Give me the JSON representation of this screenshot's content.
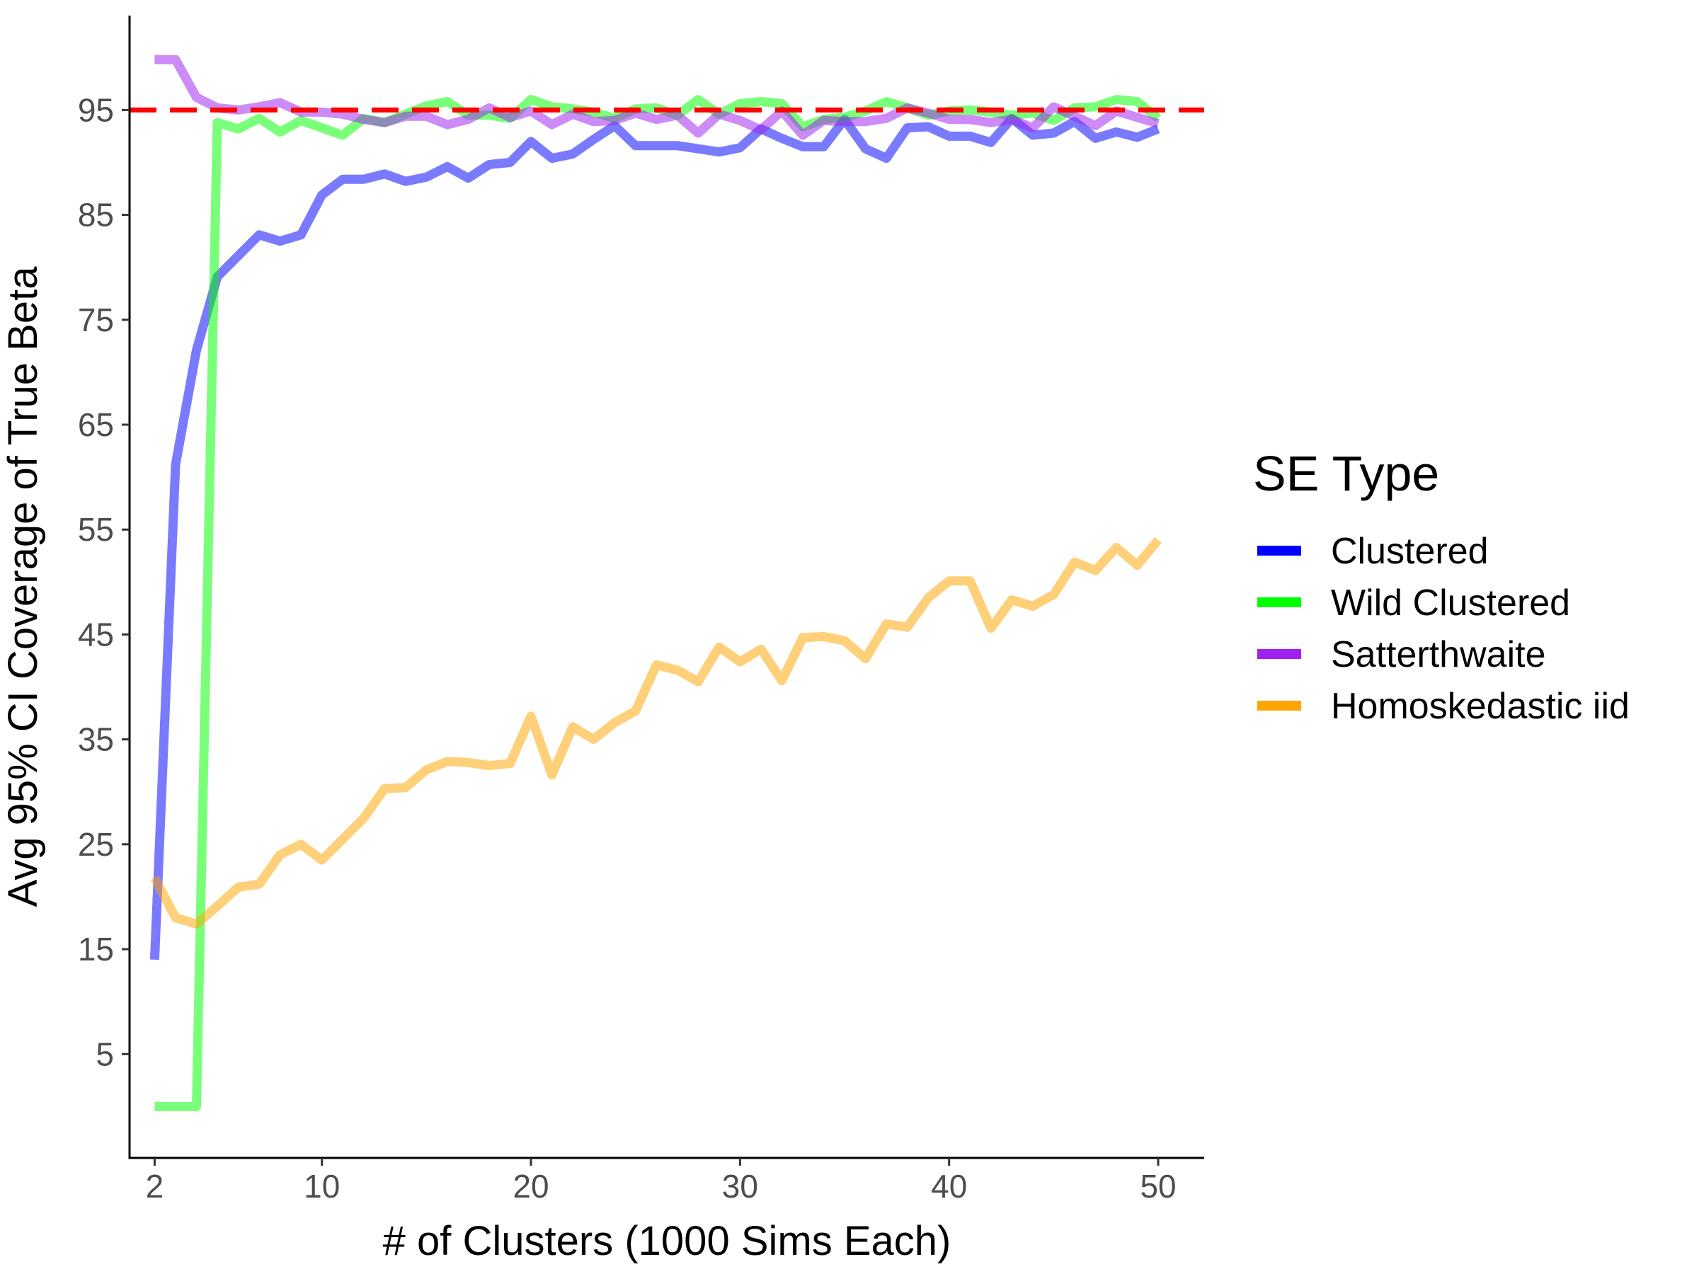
{
  "chart_data": {
    "type": "line",
    "xlabel": "# of Clusters (1000 Sims Each)",
    "ylabel": "Avg 95% CI Coverage of True Beta",
    "xlim": [
      0.8,
      52.2
    ],
    "ylim": [
      -4.9,
      104
    ],
    "x_ticks": [
      2,
      10,
      20,
      30,
      40,
      50
    ],
    "y_ticks": [
      5,
      15,
      25,
      35,
      45,
      55,
      65,
      75,
      85,
      95
    ],
    "grid": false,
    "legend_position": "right",
    "legend_title": "SE Type",
    "reference_line": {
      "y": 95,
      "color": "#FF0000",
      "style": "dashed"
    },
    "x": [
      2,
      3,
      4,
      5,
      6,
      7,
      8,
      9,
      10,
      11,
      12,
      13,
      14,
      15,
      16,
      17,
      18,
      19,
      20,
      21,
      22,
      23,
      24,
      25,
      26,
      27,
      28,
      29,
      30,
      31,
      32,
      33,
      34,
      35,
      36,
      37,
      38,
      39,
      40,
      41,
      42,
      43,
      44,
      45,
      46,
      47,
      48,
      49,
      50
    ],
    "series": [
      {
        "name": "Clustered",
        "color": "#0000FF",
        "values": [
          14.0,
          61.2,
          72.1,
          79.1,
          81.1,
          83.1,
          82.5,
          83.1,
          86.9,
          88.4,
          88.4,
          88.9,
          88.2,
          88.6,
          89.6,
          88.5,
          89.8,
          90.0,
          92.0,
          90.4,
          90.8,
          92.2,
          93.5,
          91.6,
          91.6,
          91.6,
          91.3,
          91.0,
          91.4,
          93.2,
          92.3,
          91.5,
          91.5,
          94.1,
          91.3,
          90.4,
          93.3,
          93.4,
          92.5,
          92.5,
          91.9,
          94.2,
          92.6,
          92.8,
          93.9,
          92.3,
          92.9,
          92.4,
          93.2
        ]
      },
      {
        "name": "Wild Clustered",
        "color": "#00FF00",
        "values": [
          0.0,
          0.0,
          0.0,
          93.8,
          93.2,
          94.2,
          92.9,
          94.0,
          93.3,
          92.6,
          94.2,
          93.8,
          94.6,
          95.4,
          95.8,
          94.5,
          94.5,
          94.2,
          96.0,
          95.3,
          95.1,
          94.8,
          94.2,
          95.1,
          95.2,
          94.5,
          96.0,
          94.6,
          95.6,
          95.8,
          95.6,
          93.4,
          94.1,
          94.3,
          94.9,
          95.8,
          95.2,
          94.5,
          94.9,
          95.0,
          94.8,
          94.5,
          94.7,
          94.0,
          95.2,
          95.3,
          96.0,
          95.8,
          94.2
        ]
      },
      {
        "name": "Satterthwaite",
        "color": "#A020F0",
        "values": [
          99.8,
          99.8,
          96.2,
          95.2,
          95.0,
          95.3,
          95.7,
          94.8,
          94.8,
          94.6,
          94.1,
          93.8,
          94.4,
          94.4,
          93.6,
          94.1,
          95.2,
          94.3,
          94.9,
          93.6,
          94.6,
          93.9,
          94.0,
          94.7,
          94.1,
          94.5,
          92.8,
          94.6,
          94.0,
          93.1,
          94.9,
          92.6,
          94.0,
          93.9,
          93.9,
          94.2,
          95.2,
          94.7,
          94.1,
          94.1,
          93.8,
          94.1,
          93.3,
          95.3,
          94.4,
          93.5,
          94.9,
          94.3,
          93.7
        ]
      },
      {
        "name": "Homoskedastic iid",
        "color": "#FFA500",
        "values": [
          21.8,
          18.0,
          17.4,
          19.1,
          20.9,
          21.2,
          24.0,
          25.0,
          23.5,
          25.5,
          27.5,
          30.3,
          30.4,
          32.1,
          32.9,
          32.8,
          32.5,
          32.7,
          37.2,
          31.6,
          36.2,
          35.0,
          36.6,
          37.7,
          42.1,
          41.6,
          40.5,
          43.8,
          42.4,
          43.6,
          40.6,
          44.7,
          44.8,
          44.4,
          42.7,
          46.0,
          45.7,
          48.5,
          50.1,
          50.1,
          45.6,
          48.3,
          47.7,
          48.8,
          51.9,
          51.1,
          53.3,
          51.6,
          54.0
        ]
      }
    ]
  }
}
